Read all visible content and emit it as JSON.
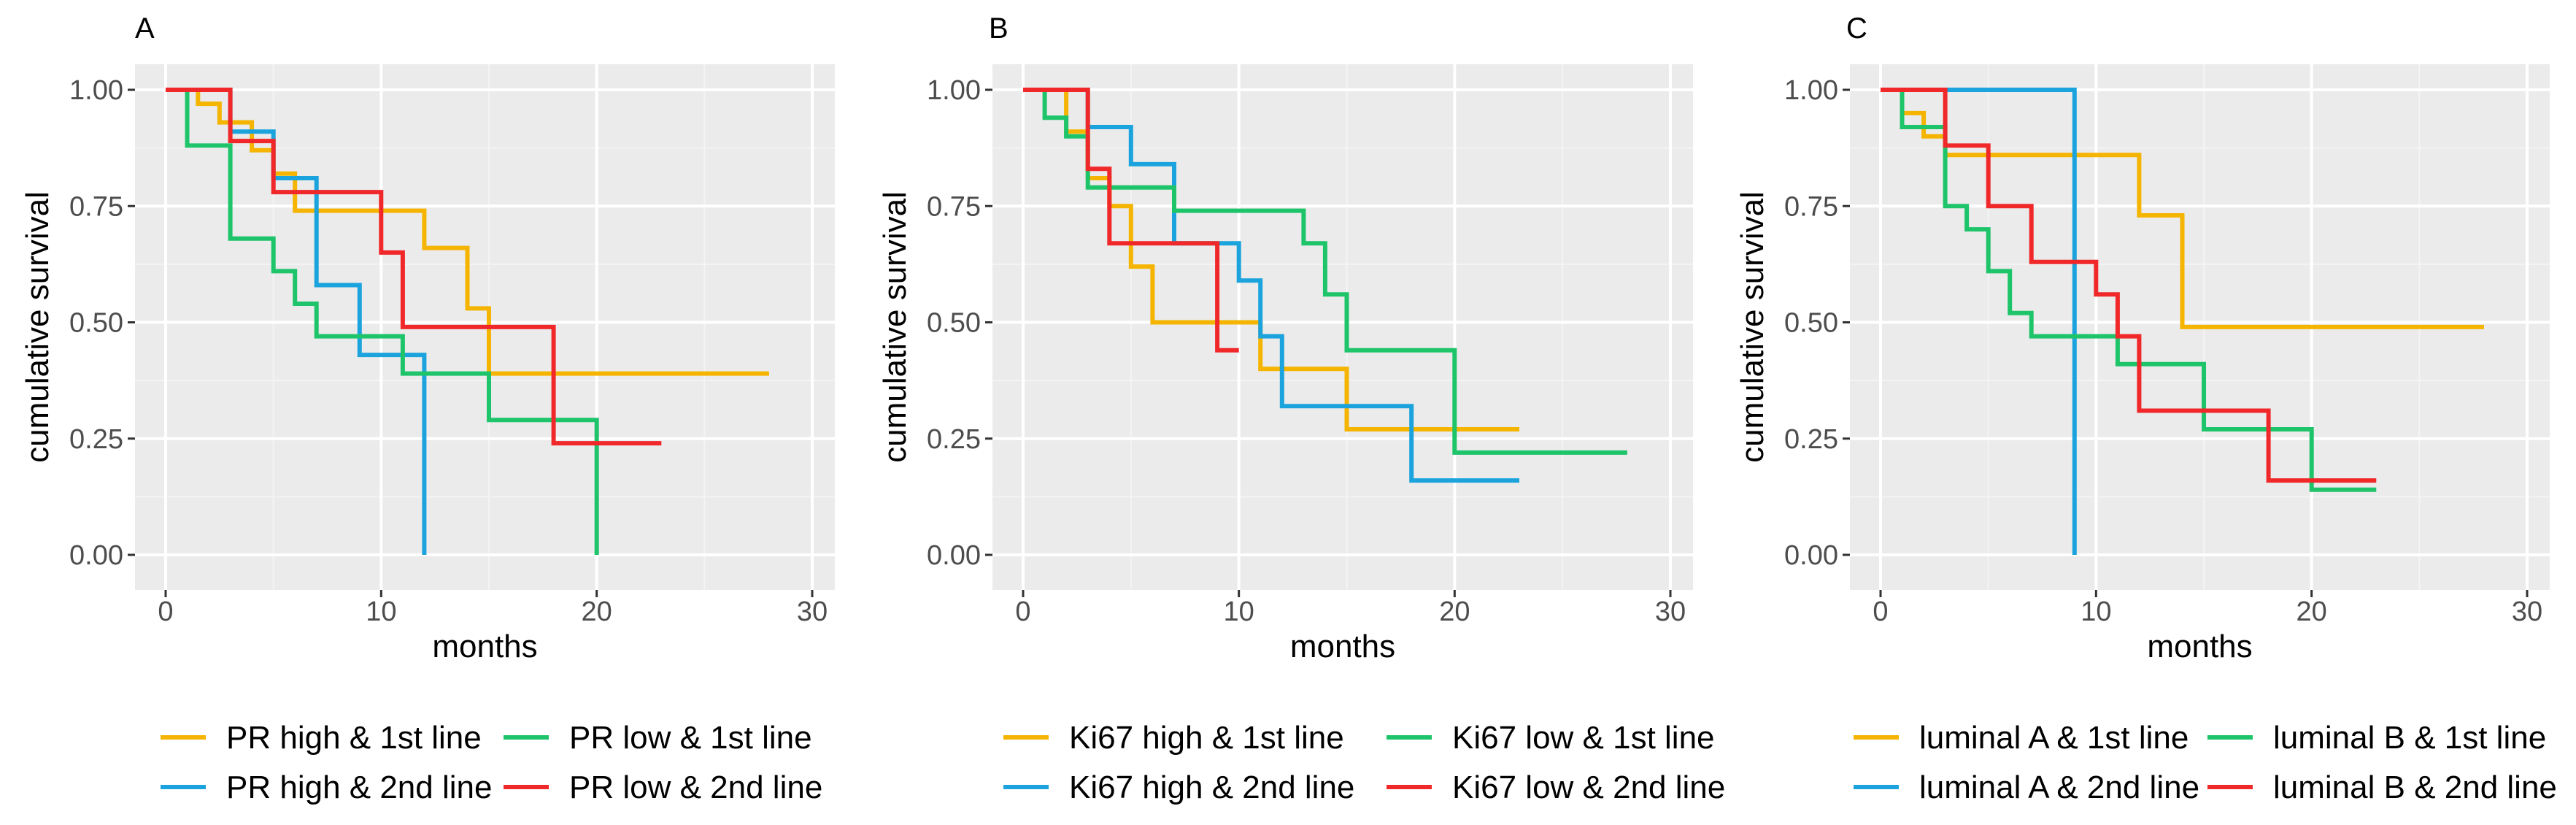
{
  "figure": {
    "axis_ylabel": "cumulative survival",
    "axis_xlabel": "months"
  },
  "chart_data": [
    {
      "type": "line",
      "panel_label": "A",
      "xlabel": "months",
      "ylabel": "cumulative survival",
      "xlim": [
        0,
        30
      ],
      "ylim": [
        0,
        1
      ],
      "x_ticks": [
        "0",
        "10",
        "20",
        "30"
      ],
      "y_ticks": [
        "0.00",
        "0.25",
        "0.50",
        "0.75",
        "1.00"
      ],
      "grid": true,
      "legend_position": "bottom",
      "series": [
        {
          "name": "PR high & 1st line",
          "color": "#F5B400",
          "x": [
            0,
            1.5,
            2.5,
            4,
            5,
            6,
            10,
            12,
            14,
            15,
            28
          ],
          "y": [
            1.0,
            0.97,
            0.93,
            0.87,
            0.82,
            0.74,
            0.74,
            0.66,
            0.53,
            0.39,
            0.39
          ]
        },
        {
          "name": "PR high & 2nd line",
          "color": "#1BA3DD",
          "x": [
            0,
            3,
            5,
            7,
            9,
            11,
            12,
            12
          ],
          "y": [
            1.0,
            0.91,
            0.81,
            0.58,
            0.43,
            0.43,
            0.43,
            0.0
          ]
        },
        {
          "name": "PR low & 1st line",
          "color": "#1EC46A",
          "x": [
            0,
            1,
            3,
            5,
            6,
            7,
            11,
            15,
            18,
            20,
            20
          ],
          "y": [
            1.0,
            0.88,
            0.68,
            0.61,
            0.54,
            0.47,
            0.39,
            0.29,
            0.29,
            0.29,
            0.0
          ]
        },
        {
          "name": "PR low & 2nd line",
          "color": "#F0282A",
          "x": [
            0,
            3,
            5,
            10,
            11,
            18,
            23
          ],
          "y": [
            1.0,
            0.89,
            0.78,
            0.65,
            0.49,
            0.24,
            0.24
          ]
        }
      ]
    },
    {
      "type": "line",
      "panel_label": "B",
      "xlabel": "months",
      "ylabel": "cumulative survival",
      "xlim": [
        0,
        30
      ],
      "ylim": [
        0,
        1
      ],
      "x_ticks": [
        "0",
        "10",
        "20",
        "30"
      ],
      "y_ticks": [
        "0.00",
        "0.25",
        "0.50",
        "0.75",
        "1.00"
      ],
      "grid": true,
      "legend_position": "bottom",
      "series": [
        {
          "name": "Ki67 high & 1st line",
          "color": "#F5B400",
          "x": [
            0,
            2,
            3,
            4,
            5,
            6,
            11,
            15,
            23
          ],
          "y": [
            1.0,
            0.91,
            0.81,
            0.75,
            0.62,
            0.5,
            0.4,
            0.27,
            0.27
          ]
        },
        {
          "name": "Ki67 high & 2nd line",
          "color": "#1BA3DD",
          "x": [
            0,
            3,
            5,
            7,
            10,
            11,
            12,
            18,
            23
          ],
          "y": [
            1.0,
            0.92,
            0.84,
            0.67,
            0.59,
            0.47,
            0.32,
            0.16,
            0.16
          ]
        },
        {
          "name": "Ki67 low & 1st line",
          "color": "#1EC46A",
          "x": [
            0,
            1,
            2,
            3,
            5,
            7,
            13,
            14,
            15,
            20,
            28
          ],
          "y": [
            1.0,
            0.94,
            0.9,
            0.79,
            0.79,
            0.74,
            0.67,
            0.56,
            0.44,
            0.22,
            0.22
          ]
        },
        {
          "name": "Ki67 low & 2nd line",
          "color": "#F0282A",
          "x": [
            0,
            3,
            4,
            9,
            10
          ],
          "y": [
            1.0,
            0.83,
            0.67,
            0.44,
            0.44
          ]
        }
      ]
    },
    {
      "type": "line",
      "panel_label": "C",
      "xlabel": "months",
      "ylabel": "cumulative survival",
      "xlim": [
        0,
        30
      ],
      "ylim": [
        0,
        1
      ],
      "x_ticks": [
        "0",
        "10",
        "20",
        "30"
      ],
      "y_ticks": [
        "0.00",
        "0.25",
        "0.50",
        "0.75",
        "1.00"
      ],
      "grid": true,
      "legend_position": "bottom",
      "series": [
        {
          "name": "luminal A & 1st line",
          "color": "#F5B400",
          "x": [
            0,
            1,
            2,
            3,
            12,
            14,
            28
          ],
          "y": [
            1.0,
            0.95,
            0.9,
            0.86,
            0.73,
            0.49,
            0.49
          ]
        },
        {
          "name": "luminal A & 2nd line",
          "color": "#1BA3DD",
          "x": [
            0,
            9,
            9
          ],
          "y": [
            1.0,
            1.0,
            0.0
          ]
        },
        {
          "name": "luminal B & 1st line",
          "color": "#1EC46A",
          "x": [
            0,
            1,
            3,
            4,
            5,
            6,
            7,
            11,
            15,
            20,
            23
          ],
          "y": [
            1.0,
            0.92,
            0.75,
            0.7,
            0.61,
            0.52,
            0.47,
            0.41,
            0.27,
            0.14,
            0.14
          ]
        },
        {
          "name": "luminal B & 2nd line",
          "color": "#F0282A",
          "x": [
            0,
            3,
            5,
            7,
            10,
            11,
            12,
            18,
            23
          ],
          "y": [
            1.0,
            0.88,
            0.75,
            0.63,
            0.56,
            0.47,
            0.31,
            0.16,
            0.16
          ]
        }
      ]
    }
  ]
}
